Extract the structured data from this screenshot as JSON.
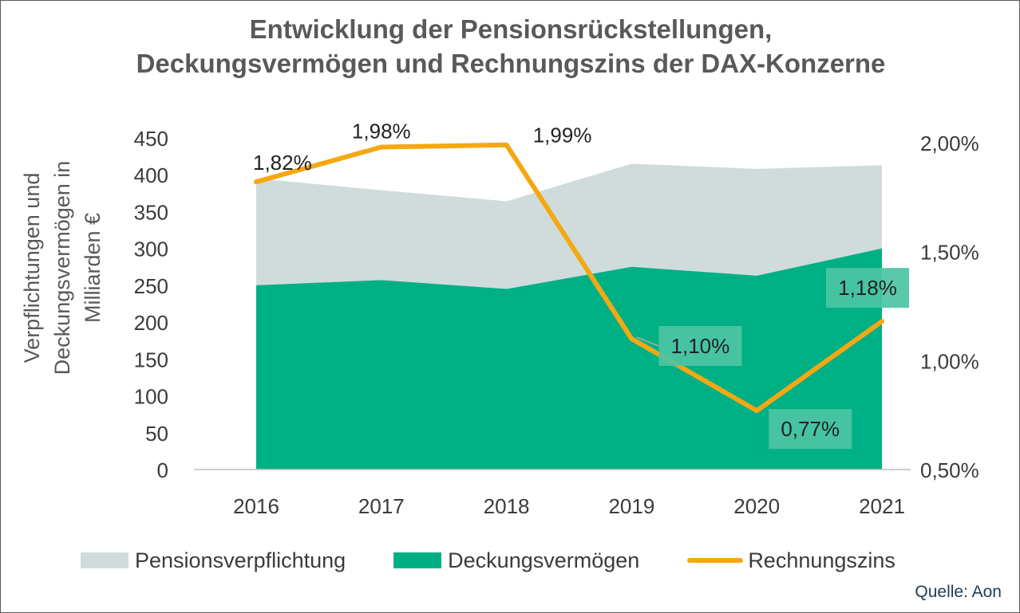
{
  "title": {
    "line1": "Entwicklung der Pensionsrückstellungen,",
    "line2": "Deckungsvermögen und Rechnungszins der DAX-Konzerne"
  },
  "source": "Quelle: Aon",
  "colors": {
    "pension": "#d0dcdc",
    "assets": "#00b085",
    "rate": "#f5a811",
    "label_box": "#4cc4a4"
  },
  "chart_data": {
    "type": "area",
    "title": "Entwicklung der Pensionsrückstellungen, Deckungsvermögen und Rechnungszins der DAX-Konzerne",
    "categories": [
      "2016",
      "2017",
      "2018",
      "2019",
      "2020",
      "2021"
    ],
    "ylabel": "Verpflichtungen und Deckungsvermögen in Milliarden €",
    "ylabel_lines": [
      "Verpflichtungen und",
      "Deckungsvermögen in",
      "Milliarden €"
    ],
    "ylim": [
      0,
      450
    ],
    "yticks": [
      "0",
      "50",
      "100",
      "150",
      "200",
      "250",
      "300",
      "350",
      "400",
      "450"
    ],
    "y2lim": [
      0.5,
      2.0
    ],
    "y2ticks": [
      "0,50%",
      "1,00%",
      "1,50%",
      "2,00%"
    ],
    "grid": false,
    "legend_position": "bottom",
    "series": [
      {
        "name": "Pensionsverpflichtung",
        "type": "area",
        "axis": "left",
        "values": [
          395,
          379,
          364,
          415,
          408,
          413
        ]
      },
      {
        "name": "Deckungsvermögen",
        "type": "area",
        "axis": "left",
        "values": [
          250,
          257,
          245,
          275,
          263,
          300
        ]
      },
      {
        "name": "Rechnungszins",
        "type": "line",
        "axis": "right",
        "values": [
          1.82,
          1.98,
          1.99,
          1.1,
          0.77,
          1.18
        ],
        "labels": [
          "1,82%",
          "1,98%",
          "1,99%",
          "1,10%",
          "0,77%",
          "1,18%"
        ]
      }
    ]
  }
}
